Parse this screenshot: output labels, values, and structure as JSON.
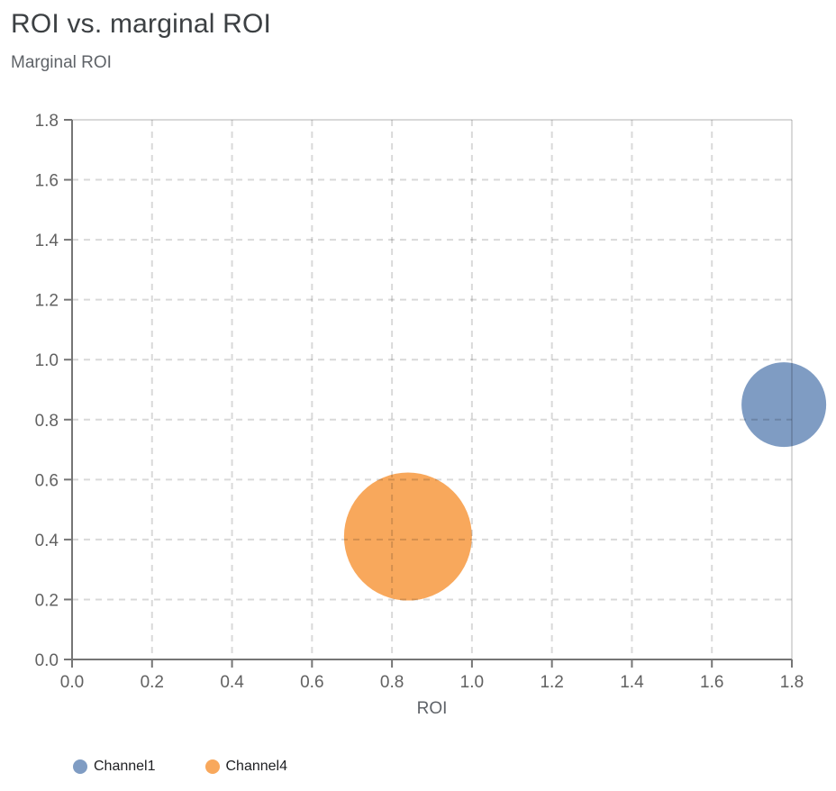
{
  "chart_data": {
    "type": "scatter",
    "subtype": "bubble",
    "title": "ROI vs. marginal ROI",
    "xlabel": "ROI",
    "ylabel": "Marginal ROI",
    "xlim": [
      0.0,
      1.8
    ],
    "ylim": [
      0.0,
      1.8
    ],
    "xticks": [
      0.0,
      0.2,
      0.4,
      0.6,
      0.8,
      1.0,
      1.2,
      1.4,
      1.6,
      1.8
    ],
    "yticks": [
      0.0,
      0.2,
      0.4,
      0.6,
      0.8,
      1.0,
      1.2,
      1.4,
      1.6,
      1.8
    ],
    "grid": "dashed",
    "grid_solid_edges": true,
    "legend_position": "bottom-left",
    "series": [
      {
        "name": "Channel1",
        "x": 1.78,
        "y": 0.85,
        "radius_px": 47,
        "color": "#7F9CC3"
      },
      {
        "name": "Channel4",
        "x": 0.84,
        "y": 0.41,
        "radius_px": 71,
        "color": "#F8A85C"
      }
    ],
    "colors": {
      "title": "#3C4043",
      "subtitle": "#5F6368",
      "axis_line": "#757575",
      "grid_line": "rgba(0,0,0,0.15)",
      "tick_label": "#616161",
      "legend_text": "#202124",
      "background": "#FFFFFF"
    }
  }
}
